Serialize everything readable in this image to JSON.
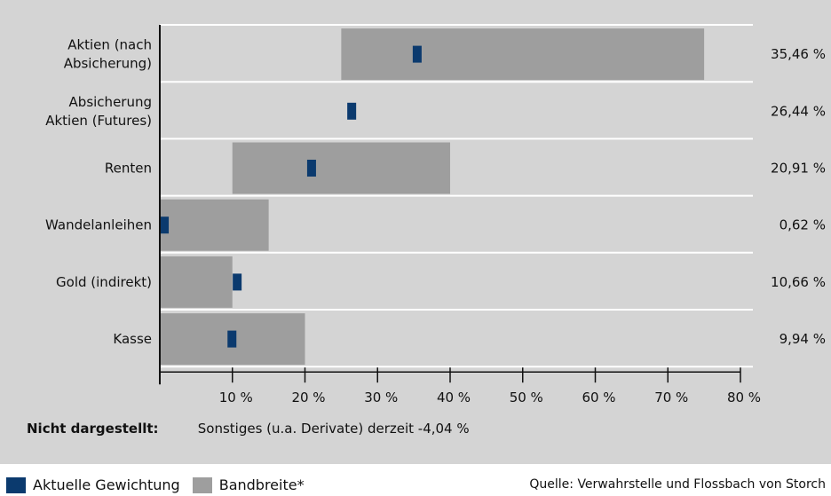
{
  "colors": {
    "current": "#0b3a6e",
    "range": "#9e9e9e",
    "background": "#d4d4d4",
    "divider": "#ffffff"
  },
  "chart_data": {
    "type": "bar",
    "orientation": "horizontal",
    "categories": [
      "Aktien (nach\nAbsicherung)",
      "Absicherung\nAktien (Futures)",
      "Renten",
      "Wandelanleihen",
      "Gold (indirekt)",
      "Kasse"
    ],
    "series": [
      {
        "name": "Aktuelle Gewichtung",
        "values": [
          35.46,
          26.44,
          20.91,
          0.62,
          10.66,
          9.94
        ]
      },
      {
        "name": "Bandbreite*",
        "ranges": [
          [
            25,
            75
          ],
          null,
          [
            10,
            40
          ],
          [
            0,
            15
          ],
          [
            0,
            10
          ],
          [
            0,
            20
          ]
        ]
      }
    ],
    "value_labels": [
      "35,46 %",
      "26,44 %",
      "20,91 %",
      "0,62 %",
      "10,66 %",
      "9,94 %"
    ],
    "xlim": [
      0,
      80
    ],
    "xticks": [
      10,
      20,
      30,
      40,
      50,
      60,
      70,
      80
    ],
    "xtick_labels": [
      "10 %",
      "20 %",
      "30 %",
      "40 %",
      "50 %",
      "60 %",
      "70 %",
      "80 %"
    ],
    "legend_position": "bottom-left",
    "grid": false
  },
  "footnote": {
    "label": "Nicht dargestellt:",
    "text": "Sonstiges (u.a. Derivate) derzeit  -4,04 %"
  },
  "legend": {
    "current_label": "Aktuelle Gewichtung",
    "range_label": "Bandbreite*"
  },
  "source": "Quelle: Verwahrstelle und Flossbach von Storch"
}
